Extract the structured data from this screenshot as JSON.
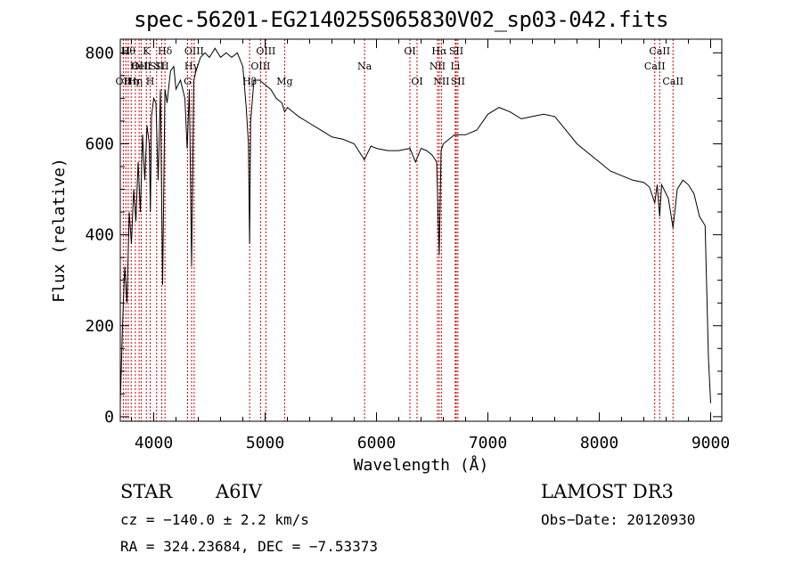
{
  "chart_data": {
    "type": "line",
    "title": "spec-56201-EG214025S065830V02_sp03-042.fits",
    "xlabel": "Wavelength (Å)",
    "ylabel": "Flux (relative)",
    "xlim": [
      3700,
      9100
    ],
    "ylim": [
      -10,
      830
    ],
    "xticks": [
      4000,
      5000,
      6000,
      7000,
      8000,
      9000
    ],
    "yticks": [
      0,
      200,
      400,
      600,
      800
    ],
    "grid": false,
    "series": [
      {
        "x": [
          3700,
          3720,
          3740,
          3760,
          3780,
          3800,
          3820,
          3840,
          3860,
          3880,
          3900,
          3920,
          3940,
          3960,
          3970,
          3980,
          4000,
          4020,
          4040,
          4060,
          4080,
          4101,
          4120,
          4150,
          4180,
          4200,
          4240,
          4280,
          4300,
          4320,
          4340,
          4360,
          4380,
          4420,
          4460,
          4500,
          4550,
          4600,
          4650,
          4700,
          4750,
          4800,
          4830,
          4850,
          4861,
          4870,
          4900,
          4950,
          5000,
          5050,
          5100,
          5150,
          5175,
          5200,
          5300,
          5400,
          5500,
          5600,
          5700,
          5800,
          5890,
          5950,
          6000,
          6100,
          6200,
          6300,
          6350,
          6400,
          6450,
          6500,
          6540,
          6563,
          6580,
          6600,
          6650,
          6700,
          6800,
          6900,
          7000,
          7100,
          7200,
          7300,
          7400,
          7500,
          7600,
          7700,
          7800,
          7900,
          8000,
          8100,
          8200,
          8300,
          8400,
          8450,
          8498,
          8520,
          8542,
          8560,
          8620,
          8662,
          8700,
          8750,
          8800,
          8850,
          8900,
          8950,
          8980,
          9000
        ],
        "y": [
          30,
          200,
          330,
          250,
          450,
          380,
          500,
          430,
          560,
          450,
          620,
          520,
          640,
          600,
          450,
          660,
          700,
          690,
          520,
          720,
          290,
          720,
          690,
          760,
          770,
          720,
          740,
          700,
          590,
          720,
          330,
          740,
          760,
          790,
          800,
          790,
          810,
          790,
          800,
          790,
          800,
          770,
          680,
          600,
          380,
          650,
          740,
          740,
          730,
          720,
          700,
          690,
          670,
          680,
          660,
          645,
          630,
          615,
          610,
          600,
          565,
          595,
          590,
          585,
          585,
          590,
          560,
          590,
          585,
          575,
          560,
          355,
          585,
          600,
          610,
          620,
          620,
          630,
          665,
          680,
          670,
          655,
          660,
          665,
          660,
          630,
          600,
          580,
          560,
          540,
          530,
          520,
          515,
          505,
          470,
          510,
          440,
          510,
          480,
          415,
          500,
          520,
          510,
          490,
          440,
          420,
          130,
          30
        ]
      }
    ],
    "annotations": [
      {
        "wave": 3727,
        "text": "OII",
        "row": 3
      },
      {
        "wave": 3750,
        "text": "H",
        "row": 1
      },
      {
        "wave": 3771,
        "text": "Hθ",
        "row": 1
      },
      {
        "wave": 3798,
        "text": "Hη",
        "row": 3
      },
      {
        "wave": 3835,
        "text": "Hη",
        "row": 3
      },
      {
        "wave": 3869,
        "text": "HeI",
        "row": 2
      },
      {
        "wave": 3889,
        "text": "OIII",
        "row": 2
      },
      {
        "wave": 3934,
        "text": "K",
        "row": 1
      },
      {
        "wave": 3968,
        "text": "H",
        "row": 3
      },
      {
        "wave": 4026,
        "text": "SII",
        "row": 2
      },
      {
        "wave": 4072,
        "text": "SII",
        "row": 2
      },
      {
        "wave": 4101,
        "text": "Hδ",
        "row": 1
      },
      {
        "wave": 4304,
        "text": "G",
        "row": 3
      },
      {
        "wave": 4340,
        "text": "Hγ",
        "row": 2
      },
      {
        "wave": 4363,
        "text": "OIII",
        "row": 1
      },
      {
        "wave": 4861,
        "text": "Hβ",
        "row": 3
      },
      {
        "wave": 4959,
        "text": "OIII",
        "row": 2
      },
      {
        "wave": 5007,
        "text": "OIII",
        "row": 1
      },
      {
        "wave": 5175,
        "text": "Mg",
        "row": 3
      },
      {
        "wave": 5893,
        "text": "Na",
        "row": 2
      },
      {
        "wave": 6300,
        "text": "OI",
        "row": 1
      },
      {
        "wave": 6364,
        "text": "OI",
        "row": 3
      },
      {
        "wave": 6548,
        "text": "NII",
        "row": 2
      },
      {
        "wave": 6563,
        "text": "Hα",
        "row": 1
      },
      {
        "wave": 6583,
        "text": "NII",
        "row": 3
      },
      {
        "wave": 6707,
        "text": "Li",
        "row": 2
      },
      {
        "wave": 6716,
        "text": "SII",
        "row": 1
      },
      {
        "wave": 6731,
        "text": "SII",
        "row": 3
      },
      {
        "wave": 8498,
        "text": "CaII",
        "row": 2
      },
      {
        "wave": 8542,
        "text": "CaII",
        "row": 1
      },
      {
        "wave": 8662,
        "text": "CaII",
        "row": 3
      }
    ]
  },
  "info": {
    "object_class": "STAR",
    "subclass": "A6IV",
    "survey": "LAMOST DR3",
    "cz": "cz = −140.0 ± 2.2 km/s",
    "obs_date": "Obs−Date: 20120930",
    "radec": "RA = 324.23684, DEC =  −7.53373"
  },
  "colors": {
    "spectrum": "#000000",
    "line_markers": "#cc0000",
    "axes": "#000000"
  }
}
